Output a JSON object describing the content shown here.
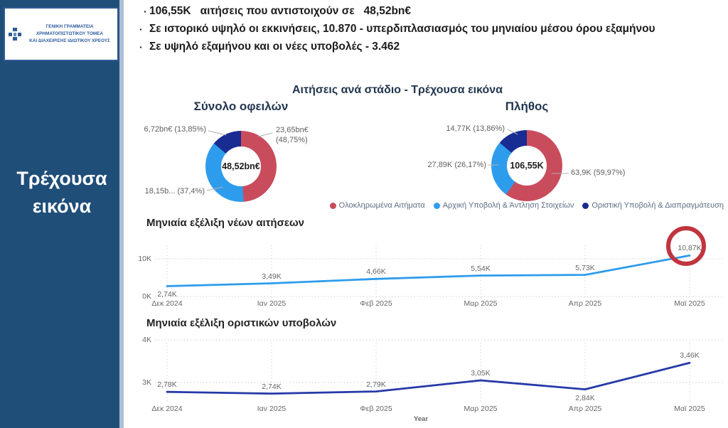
{
  "logo": {
    "line1": "ΓΕΝΙΚΗ ΓΡΑΜΜΑΤΕΙΑ ΧΡΗΜΑΤΟΠΙΣΤΩΤΙΚΟΥ ΤΟΜΕΑ",
    "line2": "ΚΑΙ ΔΙΑΧΕΙΡΙΣΗΣ ΙΔΙΩΤΙΚΟΥ ΧΡΕΟΥΣ"
  },
  "sidebar": {
    "label": "Τρέχουσα εικόνα",
    "bg_color": "#1F4E79"
  },
  "bullets": [
    {
      "value1": "106,55K",
      "text": "αιτήσεις που αντιστοιχούν σε",
      "value2": "48,52bn€"
    },
    {
      "text": "Σε ιστορικό υψηλό οι εκκινήσεις, 10.870 -  υπερδιπλασιασμός του μηνιαίου μέσου όρου εξαμήνου"
    },
    {
      "text": "Σε υψηλό εξαμήνου και οι νέες υποβολές - 3.462"
    }
  ],
  "section_title": "Αιτήσεις ανά στάδιο - Τρέχουσα εικόνα",
  "legend": [
    {
      "label": "Ολοκληρωμένα Αιτήματα",
      "color": "#C94C5D"
    },
    {
      "label": "Αρχική Υποβολή & Άντληση Στοιχείων",
      "color": "#2E9CEC"
    },
    {
      "label": "Οριστική Υποβολή & Διαπραγμάτευση",
      "color": "#182C92"
    }
  ],
  "chart_data": [
    {
      "type": "pie",
      "title": "Σύνολο οφειλών",
      "center_label": "48,52bn€",
      "slices": [
        {
          "name": "Ολοκληρωμένα Αιτήματα",
          "label": "23,65bn€ (48,75%)",
          "pct": 48.75,
          "color": "#C94C5D"
        },
        {
          "name": "Αρχική Υποβολή & Άντληση Στοιχείων",
          "label": "18,15b... (37,4%)",
          "pct": 37.4,
          "color": "#2E9CEC"
        },
        {
          "name": "Οριστική Υποβολή & Διαπραγμάτευση",
          "label": "6,72bn€ (13,85%)",
          "pct": 13.85,
          "color": "#182C92"
        }
      ]
    },
    {
      "type": "pie",
      "title": "Πλήθος",
      "center_label": "106,55K",
      "slices": [
        {
          "name": "Ολοκληρωμένα Αιτήματα",
          "label": "63,9K (59,97%)",
          "pct": 59.97,
          "color": "#C94C5D"
        },
        {
          "name": "Αρχική Υποβολή & Άντληση Στοιχείων",
          "label": "27,89K (26,17%)",
          "pct": 26.17,
          "color": "#2E9CEC"
        },
        {
          "name": "Οριστική Υποβολή & Διαπραγμάτευση",
          "label": "14,77K (13,86%)",
          "pct": 13.86,
          "color": "#182C92"
        }
      ]
    },
    {
      "type": "line",
      "title": "Μηνιαία εξέλιξη νέων αιτήσεων",
      "x": [
        "Δεκ 2024",
        "Ιαν 2025",
        "Φεβ 2025",
        "Μαρ 2025",
        "Απρ 2025",
        "Μαϊ 2025"
      ],
      "values": [
        2740,
        3490,
        4660,
        5540,
        5730,
        10870
      ],
      "labels": [
        "2,74K",
        "3,49K",
        "4,66K",
        "5,54K",
        "5,73K",
        "10,87K"
      ],
      "ylim": [
        0,
        10000
      ],
      "yticks": [
        "0K",
        "10K"
      ],
      "color": "#2E9CEC",
      "annotation": {
        "type": "circle",
        "target": "Μαϊ 2025",
        "color": "#C0353F"
      }
    },
    {
      "type": "line",
      "title": "Μηνιαία εξέλιξη οριστικών υποβολών",
      "x": [
        "Δεκ 2024",
        "Ιαν 2025",
        "Φεβ 2025",
        "Μαρ 2025",
        "Απρ 2025",
        "Μαϊ 2025"
      ],
      "values": [
        2780,
        2740,
        2790,
        3050,
        2840,
        3460
      ],
      "labels": [
        "2,78K",
        "2,74K",
        "2,79K",
        "3,05K",
        "2,84K",
        "3,46K"
      ],
      "ylim": [
        3000,
        4000
      ],
      "yticks": [
        "3K",
        "4K"
      ],
      "xlabel": "Year",
      "color": "#2639A8"
    }
  ]
}
